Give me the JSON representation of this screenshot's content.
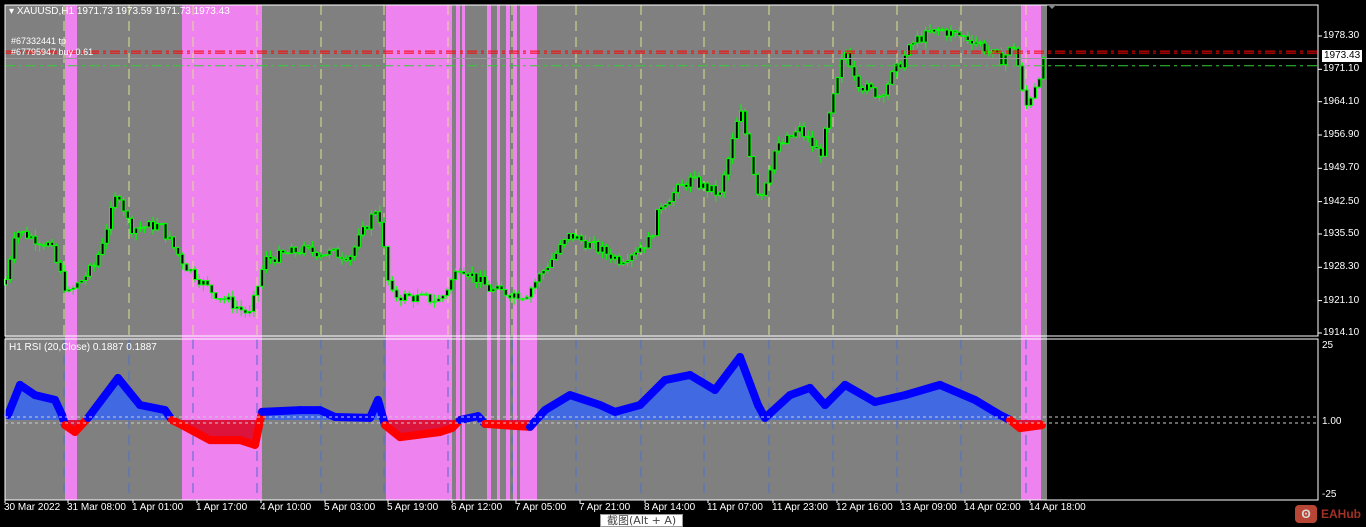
{
  "header": {
    "symbol_title": "XAUUSD,H1",
    "ohlc": "1971.73 1973.59 1971.73 1973.43",
    "order_labels": [
      "#67332441 tp",
      "#67795947 buy 0.61"
    ]
  },
  "price_axis": {
    "ticks": [
      "1978.30",
      "1971.10",
      "1964.10",
      "1956.90",
      "1949.70",
      "1942.50",
      "1935.50",
      "1928.30",
      "1921.10",
      "1914.10"
    ],
    "current_price": "1973.43"
  },
  "rsi": {
    "title": "H1 RSI (20,Close) 0.1887 0.1887",
    "ticks": [
      "25",
      "1.00",
      "-25"
    ],
    "levels": [
      1,
      -1
    ],
    "values": [
      1.7,
      11.7,
      8.3,
      6.7,
      1.7,
      -1.7,
      -4,
      0.7,
      14,
      5,
      3.3,
      0,
      -1.7,
      -6.7,
      -6.7,
      -8.3,
      2.7,
      3.3,
      3.3,
      1,
      0.7,
      6.7,
      -1.7,
      -5.7,
      -4,
      -2.7,
      0,
      1.3,
      -1.3,
      -2.3,
      3.3,
      8.3,
      5,
      2.7,
      5,
      13.3,
      15,
      10,
      21,
      5,
      0.7,
      8.3,
      10.7,
      5,
      11.7,
      6,
      8.3,
      11.7,
      6.7,
      1.7,
      0,
      -2.7,
      -1.7
    ]
  },
  "price_path": [
    1924.5,
    1936.4,
    1933.1,
    1922.3,
    1928.8,
    1945.0,
    1936.8,
    1937.4,
    1928.8,
    1923.4,
    1918.0,
    1929.9,
    1932.0,
    1930.9,
    1941.8,
    1922.3,
    1921.2,
    1928.8,
    1923.4,
    1922.3,
    1935.3,
    1929.9,
    1934.2,
    1941.8,
    1947.2,
    1943.9,
    1962.3,
    1942.8,
    1953.7,
    1958.0,
    1952.6,
    1975.3,
    1967.7,
    1965.5,
    1977.4,
    1979.6,
    1977.4,
    1973.0,
    1976.4,
    1962.3,
    1973.43
  ],
  "levels": {
    "tp_price": 1974.6,
    "buy_price": 1972.3
  },
  "time_axis": [
    "30 Mar 2022",
    "31 Mar 08:00",
    "1 Apr 01:00",
    "1 Apr 17:00",
    "4 Apr 10:00",
    "5 Apr 03:00",
    "5 Apr 19:00",
    "6 Apr 12:00",
    "7 Apr 05:00",
    "7 Apr 21:00",
    "8 Apr 14:00",
    "11 Apr 07:00",
    "11 Apr 23:00",
    "12 Apr 16:00",
    "13 Apr 09:00",
    "14 Apr 02:00",
    "14 Apr 18:00"
  ],
  "tooltip": "截图(Alt + A)",
  "watermark": "EAHub",
  "colors": {
    "bg": "#000000",
    "zone_gray": "#808080",
    "zone_pink": "#ee82ee",
    "bull": "#00ff00",
    "rsi_up": "#0000ff",
    "rsi_up_fill": "#4169e1",
    "rsi_down": "#ff0000",
    "rsi_down_fill": "#dc143c",
    "tp_line": "#ff0000",
    "buy_line": "#32cd32"
  }
}
